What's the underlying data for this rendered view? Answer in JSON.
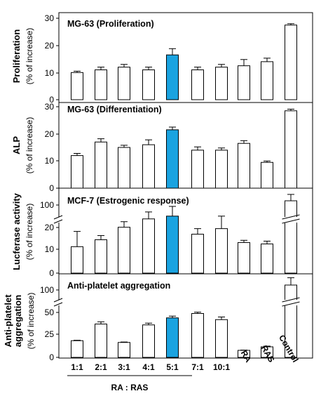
{
  "colors": {
    "highlight": "#1aa3e0",
    "bar": "#ffffff",
    "stroke": "#000000"
  },
  "chart_data": [
    {
      "type": "bar",
      "title": "MG-63 (Proliferation)",
      "ylabel": "Proliferation",
      "ylabel_sub": "(% of increase)",
      "ylim": [
        0,
        30
      ],
      "yticks": [
        "0",
        "10",
        "20",
        "30"
      ],
      "categories": [
        "1:1",
        "2:1",
        "3:1",
        "4:1",
        "5:1",
        "7:1",
        "10:1",
        "RA",
        "RAS",
        "Control"
      ],
      "values": [
        10,
        11,
        12,
        11,
        16.5,
        11,
        12,
        12.5,
        14,
        27.5
      ],
      "errors": [
        0.5,
        1,
        1,
        1,
        2.3,
        1,
        1,
        2.3,
        1.3,
        0.5
      ],
      "highlight_index": 4
    },
    {
      "type": "bar",
      "title": "MG-63 (Differentiation)",
      "ylabel": "ALP",
      "ylabel_sub": "(% of increase)",
      "ylim": [
        0,
        30
      ],
      "yticks": [
        "0",
        "10",
        "20",
        "30"
      ],
      "categories": [
        "1:1",
        "2:1",
        "3:1",
        "4:1",
        "5:1",
        "7:1",
        "10:1",
        "RA",
        "RAS",
        "Control"
      ],
      "values": [
        12,
        17,
        15,
        16,
        21.5,
        14,
        14,
        16.5,
        9.5,
        28.5
      ],
      "errors": [
        0.8,
        1.2,
        0.8,
        1.8,
        1,
        1.2,
        0.8,
        1,
        0.5,
        0.6
      ],
      "highlight_index": 4
    },
    {
      "type": "bar",
      "title": "MCF-7 (Estrogenic response)",
      "ylabel": "Lucferase activity",
      "ylabel_sub": "(% of increase)",
      "ylim": [
        0,
        25
      ],
      "axis_break": true,
      "yticks": [
        "0",
        "10",
        "20",
        "100"
      ],
      "categories": [
        "1:1",
        "2:1",
        "3:1",
        "4:1",
        "5:1",
        "7:1",
        "10:1",
        "RA",
        "RAS",
        "Control"
      ],
      "values": [
        9.5,
        12,
        16.5,
        19.5,
        20.5,
        14,
        16,
        11,
        10.5,
        100
      ],
      "errors": [
        5.5,
        1.5,
        2,
        2.5,
        3.5,
        2,
        4.5,
        0.8,
        1,
        7
      ],
      "highlight_index": 4
    },
    {
      "type": "bar",
      "title": "Anti-platelet aggregation",
      "ylabel": "Anti-platelet aggregation",
      "ylabel_sub": "(% of increase)",
      "ylim": [
        0,
        60
      ],
      "axis_break": true,
      "yticks": [
        "0",
        "25",
        "50",
        "100"
      ],
      "categories": [
        "1:1",
        "2:1",
        "3:1",
        "4:1",
        "5:1",
        "7:1",
        "10:1",
        "RA",
        "RAS",
        "Control"
      ],
      "values": [
        19,
        38,
        17,
        37,
        45,
        50,
        43,
        8,
        12,
        103
      ],
      "errors": [
        0.5,
        2.5,
        0.5,
        2,
        2,
        1.5,
        3,
        0.3,
        0.8,
        8
      ],
      "highlight_index": 4
    }
  ],
  "xaxis": {
    "categories": [
      "1:1",
      "2:1",
      "3:1",
      "4:1",
      "5:1",
      "7:1",
      "10:1",
      "RA",
      "RAS",
      "Control"
    ],
    "group_label": "RA : RAS"
  }
}
